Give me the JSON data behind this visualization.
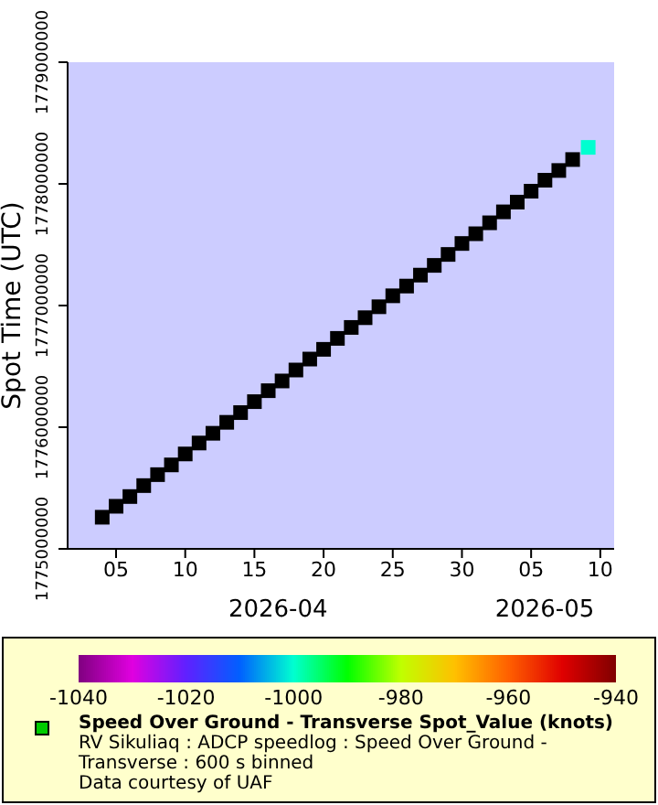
{
  "chart_data": {
    "type": "scatter",
    "ylabel": "Spot Time (UTC)",
    "clabel": "Speed Over Ground - Transverse Spot_Value (knots)",
    "marker": "square",
    "xlim": [
      "2026-04-01T12:00",
      "2026-05-11T00:00"
    ],
    "xticks": [
      {
        "value": "2026-04-05",
        "label": "05"
      },
      {
        "value": "2026-04-10",
        "label": "10"
      },
      {
        "value": "2026-04-15",
        "label": "15"
      },
      {
        "value": "2026-04-20",
        "label": "20"
      },
      {
        "value": "2026-04-25",
        "label": "25"
      },
      {
        "value": "2026-04-30",
        "label": "30"
      },
      {
        "value": "2026-05-05",
        "label": "05"
      },
      {
        "value": "2026-05-10",
        "label": "10"
      }
    ],
    "ylim": [
      1775000000,
      1779000000
    ],
    "yticks": [
      1775000000,
      1776000000,
      1777000000,
      1778000000,
      1779000000
    ],
    "clim": [
      -1040,
      -940
    ],
    "cticks": [
      -1040,
      -1020,
      -1000,
      -980,
      -960,
      -940
    ],
    "series": [
      {
        "color": "#000000",
        "x": [
          "2026-04-04",
          "2026-04-05",
          "2026-04-06",
          "2026-04-07",
          "2026-04-08",
          "2026-04-09",
          "2026-04-10",
          "2026-04-11",
          "2026-04-12",
          "2026-04-13",
          "2026-04-14",
          "2026-04-15",
          "2026-04-16",
          "2026-04-17",
          "2026-04-18",
          "2026-04-19",
          "2026-04-20",
          "2026-04-21",
          "2026-04-22",
          "2026-04-23",
          "2026-04-24",
          "2026-04-25",
          "2026-04-26",
          "2026-04-27",
          "2026-04-28",
          "2026-04-29",
          "2026-04-30",
          "2026-05-01",
          "2026-05-02",
          "2026-05-03",
          "2026-05-04",
          "2026-05-05",
          "2026-05-06",
          "2026-05-07",
          "2026-05-08"
        ],
        "values": [
          1775260000,
          1775350000,
          1775430000,
          1775520000,
          1775610000,
          1775690000,
          1775780000,
          1775870000,
          1775950000,
          1776040000,
          1776120000,
          1776210000,
          1776300000,
          1776380000,
          1776470000,
          1776560000,
          1776640000,
          1776730000,
          1776820000,
          1776900000,
          1776990000,
          1777080000,
          1777160000,
          1777250000,
          1777330000,
          1777420000,
          1777510000,
          1777590000,
          1777680000,
          1777770000,
          1777850000,
          1777940000,
          1778030000,
          1778110000,
          1778200000
        ]
      },
      {
        "x": [
          "2026-05-09T03:00"
        ],
        "values": [
          1778300000
        ],
        "cvalues": [
          -1000
        ]
      }
    ],
    "annotations": [
      "2026-04",
      "2026-05",
      "RV Sikuliaq : ADCP speedlog : Speed Over Ground - Transverse : 600 s binned",
      "Data courtesy of UAF"
    ]
  }
}
